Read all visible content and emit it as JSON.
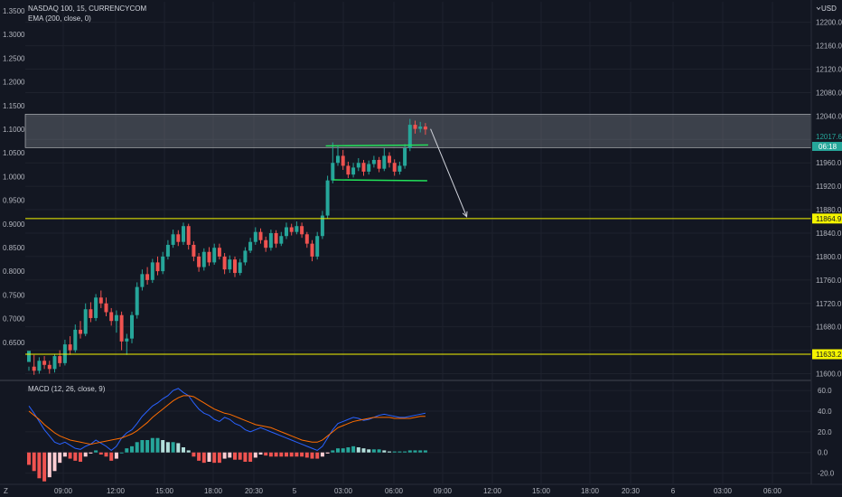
{
  "header": {
    "symbol": "NASDAQ 100, 15, CURRENCYCOM",
    "indicator": "EMA (200, close, 0)",
    "currency": "USD"
  },
  "macd_header": {
    "label": "MACD (12, 26, close, 9)"
  },
  "colors": {
    "background": "#131722",
    "up": "#26a69a",
    "down": "#ef5350",
    "zone": "#8a8f98",
    "yellow": "#f5f500",
    "green_line": "#22e35a",
    "macd": "#2962ff",
    "signal": "#ff6d00",
    "hist_up_strong": "#26a69a",
    "hist_up_weak": "#b2dfdb",
    "hist_down_strong": "#ef5350",
    "hist_down_weak": "#ffcdd2"
  },
  "left_axis_ticks": [
    "1.3500",
    "1.3000",
    "1.2500",
    "1.2000",
    "1.1500",
    "1.1000",
    "1.0500",
    "1.0000",
    "0.9500",
    "0.9000",
    "0.8500",
    "0.8000",
    "0.7500",
    "0.7000",
    "0.6500"
  ],
  "right_axis_ticks": [
    "12200.0",
    "12160.0",
    "12120.0",
    "12080.0",
    "12040.0",
    "11960.0",
    "11920.0",
    "11880.0",
    "11840.0",
    "11800.0",
    "11760.0",
    "11720.0",
    "11680.0",
    "11600.0"
  ],
  "macd_axis_ticks": [
    "60.0",
    "40.0",
    "20.0",
    "0.0",
    "-20.0"
  ],
  "time_axis_labels": [
    "09:00",
    "12:00",
    "15:00",
    "18:00",
    "20:30",
    "5",
    "03:00",
    "06:00",
    "09:00",
    "12:00",
    "15:00",
    "18:00",
    "20:30",
    "6",
    "03:00",
    "06:00"
  ],
  "price_badges": {
    "current_price": "12017.6",
    "countdown": "06:18",
    "upper_level": "11864.9",
    "lower_level": "11633.2"
  },
  "chart_data": {
    "type": "candlestick",
    "symbol": "NASDAQ 100",
    "interval": "15",
    "source": "CURRENCYCOM",
    "yaxis_right_range": [
      11590,
      12235
    ],
    "levels": [
      {
        "price": 11864.9,
        "color": "yellow"
      },
      {
        "price": 11633.2,
        "color": "yellow"
      }
    ],
    "supply_zone": [
      11986,
      12043
    ],
    "consolidation_box": {
      "top": 11989,
      "bottom": 11931
    },
    "projection_arrow": {
      "from": 12018,
      "to": 11868
    },
    "candles": [
      [
        11620,
        11639,
        11612,
        11605
      ],
      [
        11612,
        11605,
        11632,
        11598
      ],
      [
        11605,
        11622,
        11628,
        11600
      ],
      [
        11622,
        11615,
        11630,
        11608
      ],
      [
        11615,
        11608,
        11622,
        11600
      ],
      [
        11608,
        11630,
        11634,
        11602
      ],
      [
        11630,
        11618,
        11640,
        11612
      ],
      [
        11618,
        11650,
        11658,
        11614
      ],
      [
        11650,
        11640,
        11664,
        11632
      ],
      [
        11640,
        11675,
        11684,
        11636
      ],
      [
        11675,
        11668,
        11690,
        11660
      ],
      [
        11668,
        11710,
        11720,
        11664
      ],
      [
        11710,
        11695,
        11722,
        11688
      ],
      [
        11695,
        11730,
        11736,
        11690
      ],
      [
        11730,
        11720,
        11742,
        11712
      ],
      [
        11720,
        11705,
        11730,
        11698
      ],
      [
        11705,
        11690,
        11712,
        11682
      ],
      [
        11690,
        11700,
        11708,
        11670
      ],
      [
        11700,
        11655,
        11706,
        11640
      ],
      [
        11655,
        11660,
        11668,
        11632
      ],
      [
        11660,
        11700,
        11706,
        11652
      ],
      [
        11700,
        11748,
        11756,
        11694
      ],
      [
        11748,
        11770,
        11778,
        11742
      ],
      [
        11770,
        11760,
        11782,
        11752
      ],
      [
        11760,
        11790,
        11796,
        11755
      ],
      [
        11790,
        11775,
        11800,
        11768
      ],
      [
        11775,
        11800,
        11808,
        11770
      ],
      [
        11800,
        11820,
        11828,
        11795
      ],
      [
        11820,
        11838,
        11846,
        11815
      ],
      [
        11838,
        11825,
        11845,
        11818
      ],
      [
        11825,
        11852,
        11858,
        11820
      ],
      [
        11852,
        11820,
        11856,
        11812
      ],
      [
        11820,
        11800,
        11826,
        11792
      ],
      [
        11800,
        11782,
        11806,
        11774
      ],
      [
        11782,
        11808,
        11814,
        11776
      ],
      [
        11808,
        11790,
        11816,
        11784
      ],
      [
        11790,
        11815,
        11822,
        11786
      ],
      [
        11815,
        11800,
        11822,
        11795
      ],
      [
        11800,
        11778,
        11806,
        11770
      ],
      [
        11778,
        11795,
        11802,
        11772
      ],
      [
        11795,
        11772,
        11800,
        11765
      ],
      [
        11772,
        11790,
        11796,
        11768
      ],
      [
        11790,
        11810,
        11816,
        11785
      ],
      [
        11810,
        11825,
        11832,
        11806
      ],
      [
        11825,
        11842,
        11850,
        11820
      ],
      [
        11842,
        11828,
        11848,
        11822
      ],
      [
        11828,
        11815,
        11834,
        11808
      ],
      [
        11815,
        11840,
        11846,
        11810
      ],
      [
        11840,
        11822,
        11845,
        11815
      ],
      [
        11822,
        11835,
        11842,
        11818
      ],
      [
        11835,
        11850,
        11858,
        11830
      ],
      [
        11850,
        11842,
        11856,
        11836
      ],
      [
        11842,
        11852,
        11860,
        11838
      ],
      [
        11852,
        11838,
        11858,
        11832
      ],
      [
        11838,
        11822,
        11842,
        11815
      ],
      [
        11822,
        11800,
        11828,
        11792
      ],
      [
        11800,
        11835,
        11842,
        11795
      ],
      [
        11835,
        11870,
        11878,
        11830
      ],
      [
        11870,
        11930,
        11938,
        11865
      ],
      [
        11930,
        11960,
        11995,
        11925
      ],
      [
        11960,
        11972,
        11990,
        11955
      ],
      [
        11972,
        11955,
        11982,
        11948
      ],
      [
        11955,
        11940,
        11962,
        11934
      ],
      [
        11940,
        11952,
        11960,
        11935
      ],
      [
        11952,
        11960,
        11968,
        11946
      ],
      [
        11960,
        11945,
        11965,
        11938
      ],
      [
        11945,
        11958,
        11964,
        11940
      ],
      [
        11958,
        11965,
        11972,
        11952
      ],
      [
        11965,
        11950,
        11970,
        11944
      ],
      [
        11950,
        11972,
        11985,
        11946
      ],
      [
        11972,
        11960,
        11978,
        11952
      ],
      [
        11960,
        11945,
        11966,
        11938
      ],
      [
        11945,
        11955,
        11962,
        11940
      ],
      [
        11955,
        11985,
        11992,
        11950
      ],
      [
        11985,
        12025,
        12035,
        11980
      ],
      [
        12025,
        12018,
        12032,
        12010
      ],
      [
        12018,
        12022,
        12030,
        12012
      ],
      [
        12022,
        12017,
        12028,
        12008
      ]
    ],
    "macd_line": [
      45,
      38,
      30,
      22,
      16,
      10,
      8,
      10,
      7,
      4,
      3,
      6,
      8,
      12,
      9,
      6,
      2,
      6,
      14,
      19,
      22,
      28,
      35,
      40,
      45,
      48,
      52,
      55,
      60,
      62,
      58,
      55,
      48,
      42,
      38,
      36,
      32,
      30,
      34,
      32,
      28,
      26,
      22,
      20,
      22,
      24,
      22,
      20,
      18,
      16,
      14,
      12,
      10,
      8,
      6,
      4,
      2,
      6,
      14,
      22,
      28,
      30,
      32,
      34,
      33,
      31,
      32,
      34,
      36,
      37,
      36,
      35,
      34,
      34,
      35,
      36,
      37,
      38
    ],
    "signal_line": [
      40,
      36,
      32,
      27,
      23,
      19,
      16,
      14,
      12,
      11,
      10,
      9,
      8,
      9,
      10,
      11,
      12,
      13,
      14,
      16,
      18,
      21,
      25,
      29,
      34,
      38,
      42,
      46,
      50,
      53,
      55,
      55,
      54,
      51,
      48,
      45,
      42,
      40,
      38,
      37,
      35,
      33,
      31,
      29,
      27,
      26,
      25,
      24,
      22,
      20,
      18,
      16,
      14,
      12,
      11,
      10,
      10,
      12,
      16,
      20,
      24,
      26,
      28,
      30,
      31,
      32,
      33,
      34,
      34,
      34,
      34,
      33,
      33,
      33,
      33,
      34,
      35,
      35
    ],
    "histogram": [
      -12,
      -18,
      -25,
      -28,
      -24,
      -18,
      -10,
      -4,
      -6,
      -8,
      -9,
      -4,
      -1,
      2,
      -2,
      -4,
      -8,
      -6,
      0,
      4,
      6,
      10,
      12,
      12,
      14,
      14,
      12,
      10,
      10,
      9,
      5,
      2,
      -4,
      -8,
      -10,
      -9,
      -10,
      -10,
      -6,
      -5,
      -7,
      -7,
      -9,
      -9,
      -5,
      -2,
      -3,
      -4,
      -4,
      -4,
      -4,
      -4,
      -4,
      -4,
      -5,
      -6,
      -6,
      -4,
      -1,
      2,
      4,
      4,
      5,
      6,
      5,
      4,
      3,
      3,
      3,
      2,
      1,
      1,
      1,
      1,
      2,
      2,
      2,
      2
    ]
  }
}
